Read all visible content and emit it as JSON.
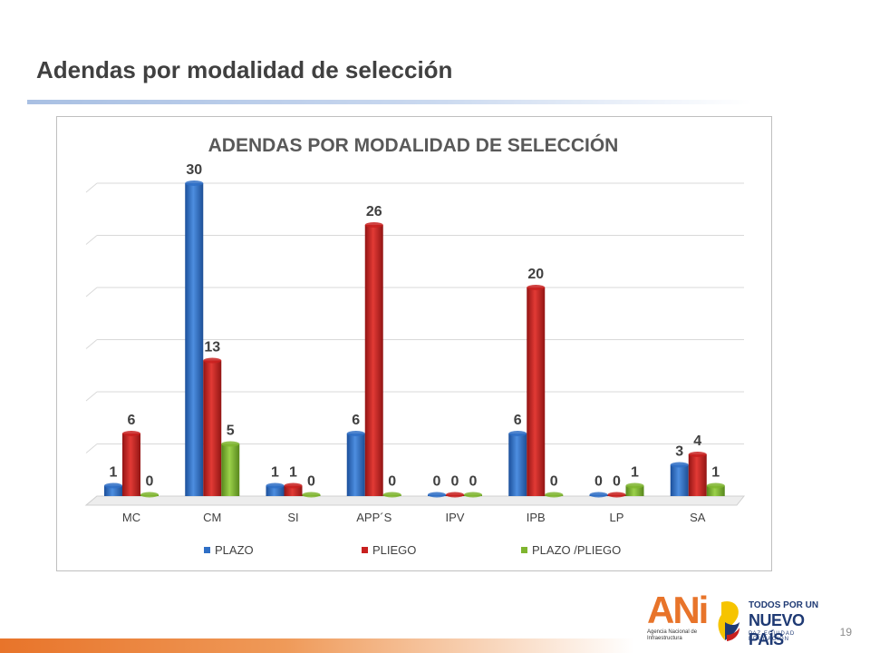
{
  "slide": {
    "title": "Adendas por modalidad de selección",
    "page_number": "19"
  },
  "logos": {
    "ani": {
      "mark": "ANi",
      "subtitle": "Agencia Nacional de Infraestructura"
    },
    "pais": {
      "line1": "TODOS POR UN",
      "line2": "NUEVO PAÍS",
      "line3": "PAZ  EQUIDAD  EDUCACIÓN"
    }
  },
  "colors": {
    "plazo": "#2f6fc6",
    "pliego": "#c8201f",
    "plazo_pliego": "#7fb52f",
    "orange_accent": "#e8742a"
  },
  "chart_data": {
    "type": "bar",
    "title": "ADENDAS POR MODALIDAD DE SELECCIÓN",
    "categories": [
      "MC",
      "CM",
      "SI",
      "APP´S",
      "IPV",
      "IPB",
      "LP",
      "SA"
    ],
    "series": [
      {
        "name": "PLAZO",
        "values": [
          1,
          30,
          1,
          6,
          0,
          6,
          0,
          3
        ]
      },
      {
        "name": "PLIEGO",
        "values": [
          6,
          13,
          1,
          26,
          0,
          20,
          0,
          4
        ]
      },
      {
        "name": "PLAZO /PLIEGO",
        "values": [
          0,
          5,
          0,
          0,
          0,
          0,
          1,
          1
        ]
      }
    ],
    "ylim": [
      0,
      30
    ],
    "grid": true,
    "legend_position": "bottom",
    "data_labels": true,
    "style": "3d-cylinder"
  }
}
